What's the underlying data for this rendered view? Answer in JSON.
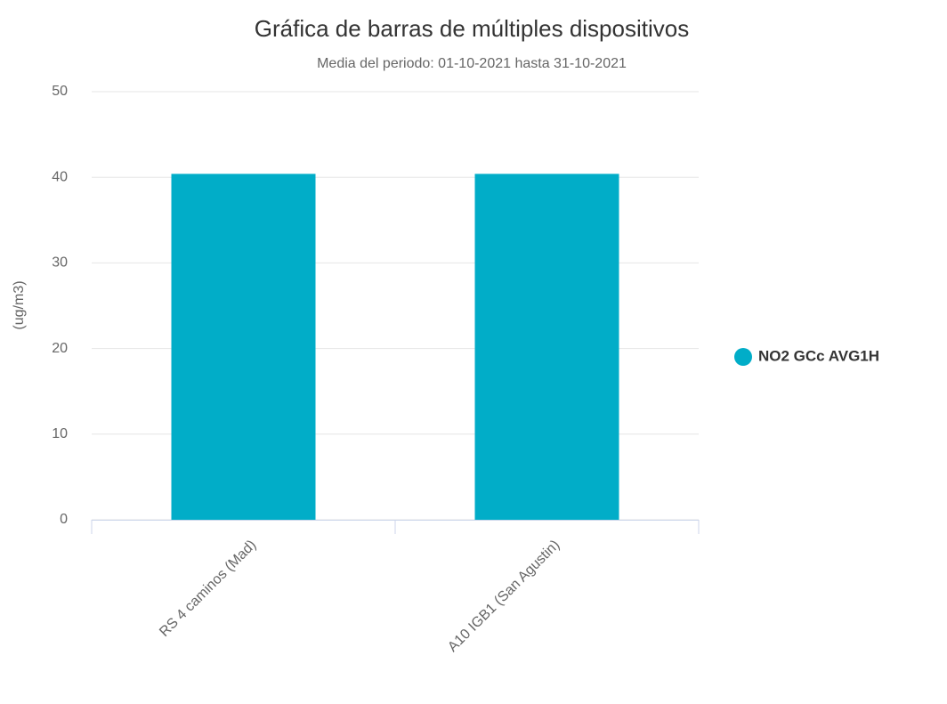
{
  "chart_data": {
    "type": "bar",
    "title": "Gráfica de barras de múltiples dispositivos",
    "subtitle": "Media del periodo: 01-10-2021 hasta 31-10-2021",
    "y_label": "(ug/m3)",
    "categories": [
      "RS 4 caminos (Mad)",
      "A10 IGB1 (San Agustin)"
    ],
    "series": [
      {
        "name": "NO2 GCc AVG1H",
        "color": "#01adc8",
        "values": [
          40.4,
          40.4
        ]
      }
    ],
    "ylim": [
      0,
      50
    ],
    "yticks": [
      0,
      10,
      20,
      30,
      40,
      50
    ],
    "grid": true,
    "legend": "right"
  }
}
